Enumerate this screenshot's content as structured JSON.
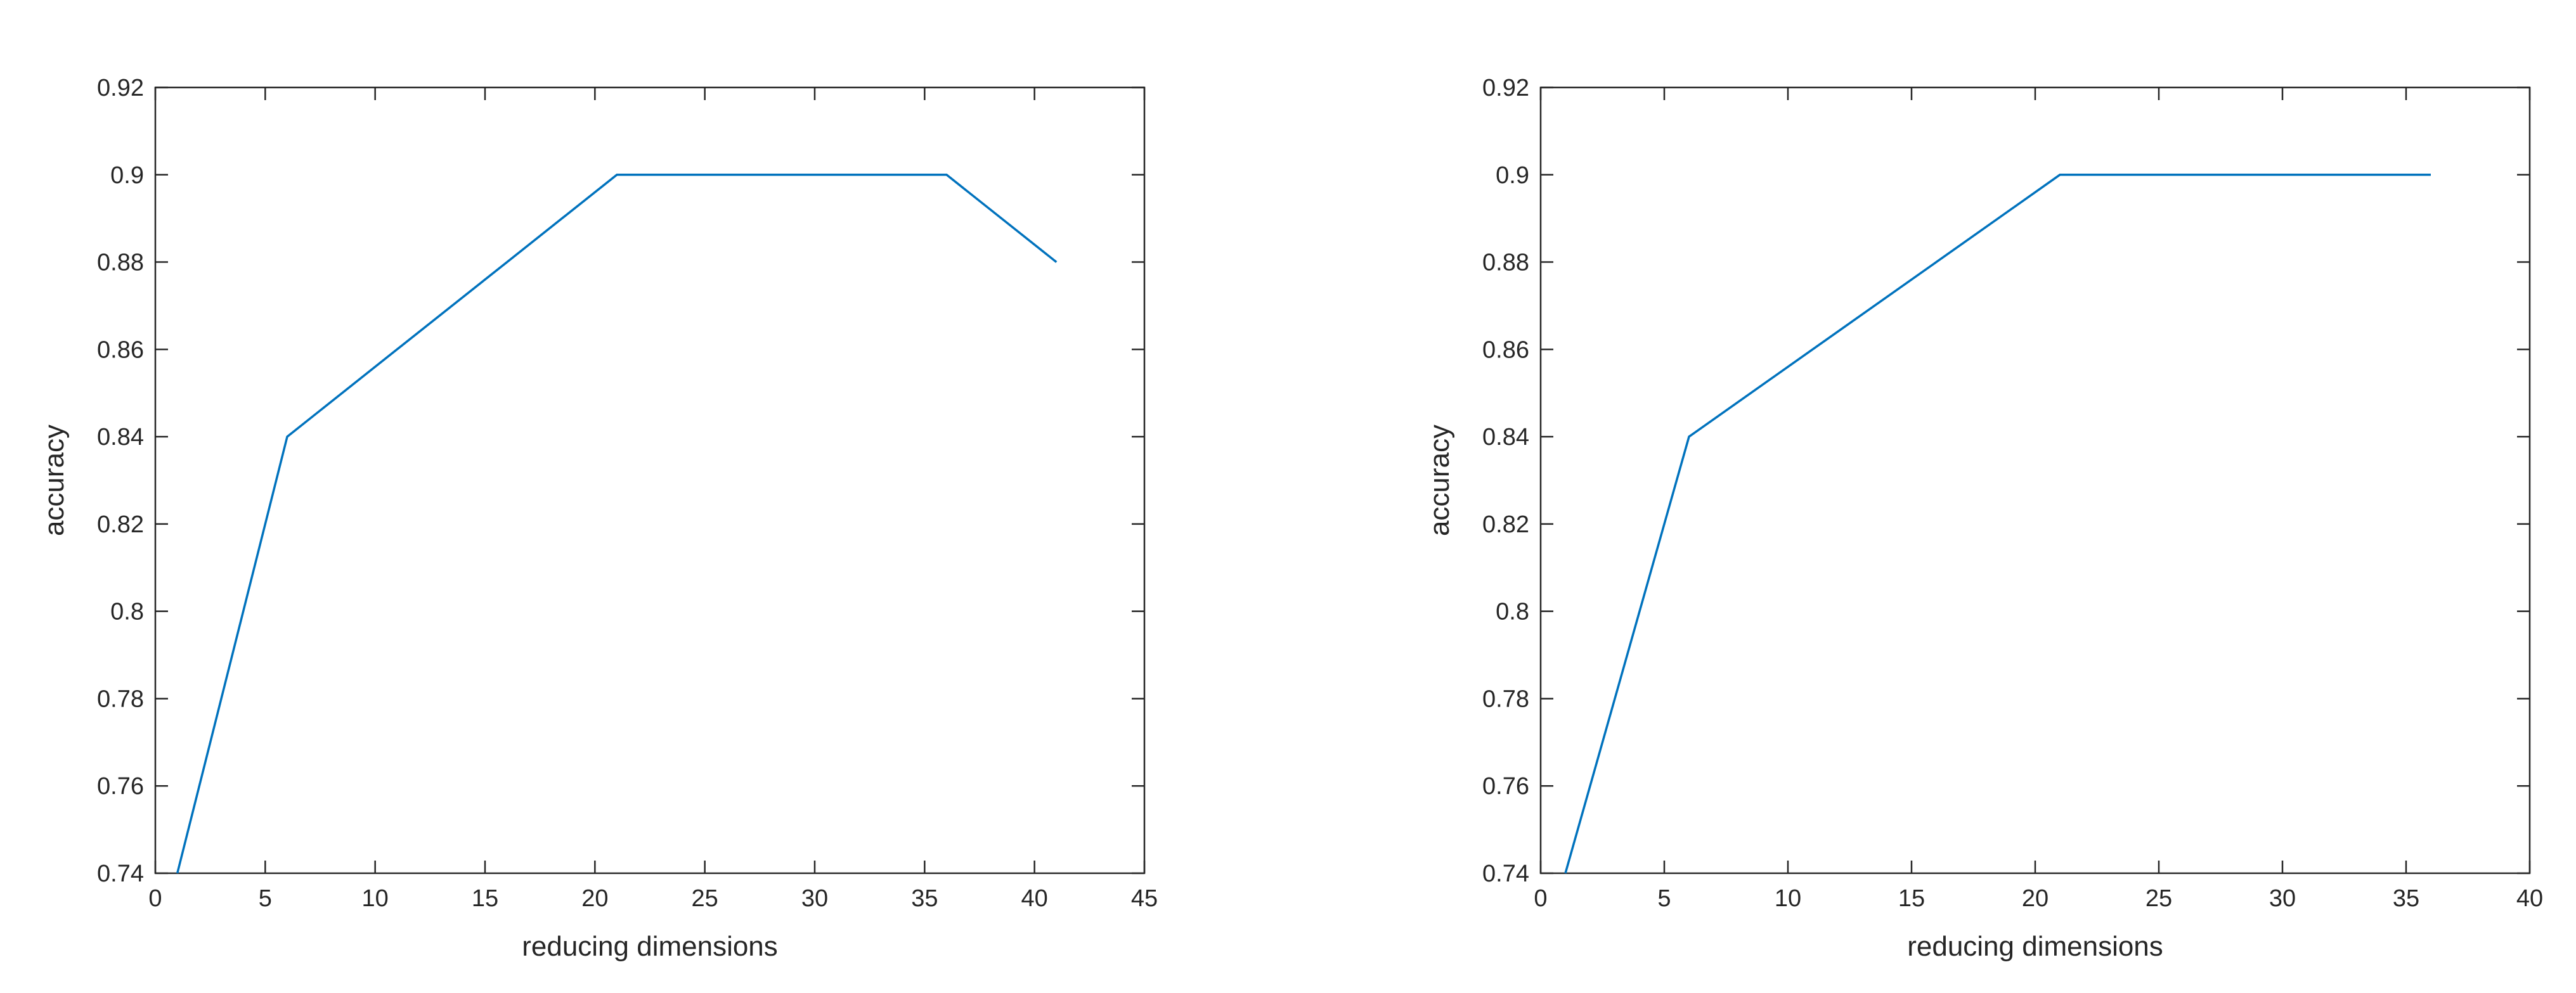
{
  "chart_data": [
    {
      "type": "line",
      "title": "",
      "xlabel": "reducing dimensions",
      "ylabel": "accuracy",
      "xlim": [
        0,
        45
      ],
      "ylim": [
        0.74,
        0.92
      ],
      "xticks": [
        0,
        5,
        10,
        15,
        20,
        25,
        30,
        35,
        40,
        45
      ],
      "yticks": [
        0.74,
        0.76,
        0.78,
        0.8,
        0.82,
        0.84,
        0.86,
        0.88,
        0.9,
        0.92
      ],
      "grid": false,
      "series": [
        {
          "color": "#0072BD",
          "x": [
            1,
            6,
            11,
            16,
            21,
            26,
            31,
            36,
            41
          ],
          "y": [
            0.74,
            0.84,
            0.86,
            0.88,
            0.9,
            0.9,
            0.9,
            0.9,
            0.88
          ]
        }
      ]
    },
    {
      "type": "line",
      "title": "",
      "xlabel": "reducing dimensions",
      "ylabel": "accuracy",
      "xlim": [
        0,
        40
      ],
      "ylim": [
        0.74,
        0.92
      ],
      "xticks": [
        0,
        5,
        10,
        15,
        20,
        25,
        30,
        35,
        40
      ],
      "yticks": [
        0.74,
        0.76,
        0.78,
        0.8,
        0.82,
        0.84,
        0.86,
        0.88,
        0.9,
        0.92
      ],
      "grid": false,
      "series": [
        {
          "color": "#0072BD",
          "x": [
            1,
            6,
            11,
            16,
            21,
            26,
            31,
            36
          ],
          "y": [
            0.74,
            0.84,
            0.86,
            0.88,
            0.9,
            0.9,
            0.9,
            0.9
          ]
        }
      ]
    }
  ]
}
